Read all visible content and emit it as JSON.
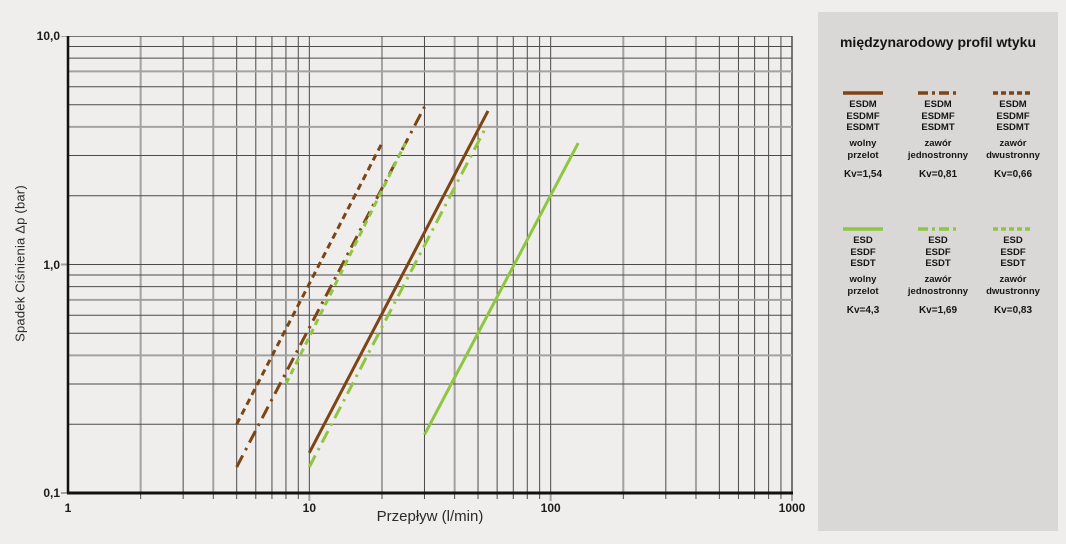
{
  "page": {
    "background": "#efeeec",
    "panel_background": "#d9d8d6",
    "grid_minor_color": "#4b4b4b",
    "grid_accent_color": "#a3a2a0",
    "axis_color": "#111111"
  },
  "chart_data": {
    "type": "line",
    "title": "",
    "xlabel": "Przepływ (l/min)",
    "ylabel": "Spadek Ciśnienia Δp (bar)",
    "xscale": "log",
    "yscale": "log",
    "xlim": [
      1,
      1000
    ],
    "ylim": [
      0.1,
      10
    ],
    "grid": true,
    "legend_position": "right-panel",
    "x_tick_labels": [
      {
        "value": 1,
        "label": "1"
      },
      {
        "value": 10,
        "label": "10"
      },
      {
        "value": 100,
        "label": "100"
      },
      {
        "value": 1000,
        "label": "1000"
      }
    ],
    "y_tick_labels": [
      {
        "value": 10,
        "label": "10,0"
      },
      {
        "value": 1,
        "label": "1,0"
      },
      {
        "value": 0.1,
        "label": "0,1"
      }
    ],
    "colors": {
      "brown": "#7d4414",
      "green": "#8fc640"
    },
    "series": [
      {
        "id": "esdm-wolny-przelot",
        "label": "ESDM ESDMF ESDMT wolny przelot",
        "kv": "Kv=1,54",
        "color_key": "brown",
        "style": "solid",
        "points": [
          [
            10,
            0.15
          ],
          [
            55,
            4.7
          ]
        ]
      },
      {
        "id": "esdm-zawor-jednostronny",
        "label": "ESDM ESDMF ESDMT zawór jednostronny",
        "kv": "Kv=0,81",
        "color_key": "brown",
        "style": "dashdot",
        "points": [
          [
            5,
            0.13
          ],
          [
            30,
            4.9
          ]
        ]
      },
      {
        "id": "esdm-zawor-dwustronny",
        "label": "ESDM ESDMF ESDMT zawór dwustronny",
        "kv": "Kv=0,66",
        "color_key": "brown",
        "style": "dashed",
        "points": [
          [
            5,
            0.2
          ],
          [
            20,
            3.4
          ]
        ]
      },
      {
        "id": "esd-wolny-przelot",
        "label": "ESD ESDF ESDT wolny przelot",
        "kv": "Kv=4,3",
        "color_key": "green",
        "style": "solid",
        "points": [
          [
            30,
            0.18
          ],
          [
            130,
            3.4
          ]
        ]
      },
      {
        "id": "esd-zawor-jednostronny",
        "label": "ESD ESDF ESDT zawór jednostronny",
        "kv": "Kv=1,69",
        "color_key": "green",
        "style": "dashdot",
        "points": [
          [
            10,
            0.13
          ],
          [
            54,
            4.0
          ]
        ]
      },
      {
        "id": "esd-zawor-dwustronny",
        "label": "ESD ESDF ESDT zawór dwustronny",
        "kv": "Kv=0,83",
        "color_key": "green",
        "style": "dashed",
        "points": [
          [
            8,
            0.3
          ],
          [
            25,
            3.4
          ]
        ]
      }
    ]
  },
  "legend": {
    "title": "międzynarodowy profil wtyku",
    "groups": [
      {
        "color_key": "brown",
        "entries": [
          {
            "style": "solid",
            "models": [
              "ESDM",
              "ESDMF",
              "ESDMT"
            ],
            "type": [
              "wolny",
              "przelot"
            ],
            "kv": "Kv=1,54"
          },
          {
            "style": "dashdot",
            "models": [
              "ESDM",
              "ESDMF",
              "ESDMT"
            ],
            "type": [
              "zawór",
              "jednostronny"
            ],
            "kv": "Kv=0,81"
          },
          {
            "style": "dashed",
            "models": [
              "ESDM",
              "ESDMF",
              "ESDMT"
            ],
            "type": [
              "zawór",
              "dwustronny"
            ],
            "kv": "Kv=0,66"
          }
        ]
      },
      {
        "color_key": "green",
        "entries": [
          {
            "style": "solid",
            "models": [
              "ESD",
              "ESDF",
              "ESDT"
            ],
            "type": [
              "wolny",
              "przelot"
            ],
            "kv": "Kv=4,3"
          },
          {
            "style": "dashdot",
            "models": [
              "ESD",
              "ESDF",
              "ESDT"
            ],
            "type": [
              "zawór",
              "jednostronny"
            ],
            "kv": "Kv=1,69"
          },
          {
            "style": "dashed",
            "models": [
              "ESD",
              "ESDF",
              "ESDT"
            ],
            "type": [
              "zawór",
              "dwustronny"
            ],
            "kv": "Kv=0,83"
          }
        ]
      }
    ]
  }
}
